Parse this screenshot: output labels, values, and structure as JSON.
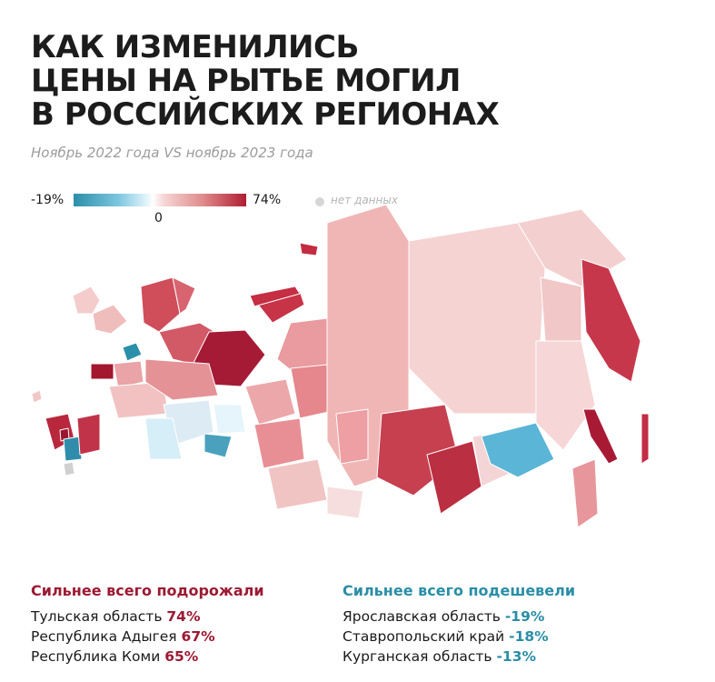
{
  "title_lines": [
    "КАК ИЗМЕНИЛИСЬ",
    "ЦЕНЫ НА РЫТЬЕ МОГИЛ",
    "В РОССИЙСКИХ РЕГИОНАХ"
  ],
  "subtitle": "Ноябрь 2022 года VS ноябрь 2023 года",
  "legend": {
    "min_label": "-19%",
    "zero_label": "0",
    "max_label": "74%",
    "nodata_label": "нет данных",
    "colors": {
      "negative": "#2b8fa9",
      "zero": "#ffffff",
      "positive": "#b01d34",
      "nodata": "#d6d6d6"
    }
  },
  "map": {
    "scale_min": -19,
    "scale_max": 74
  },
  "top_increase": {
    "heading": "Сильнее всего подорожали",
    "items": [
      {
        "region": "Тульская область",
        "value": "74%"
      },
      {
        "region": "Республика Адыгея",
        "value": "67%"
      },
      {
        "region": "Республика Коми",
        "value": "65%"
      }
    ]
  },
  "top_decrease": {
    "heading": "Сильнее всего подешевели",
    "items": [
      {
        "region": "Ярославская область",
        "value": "-19%"
      },
      {
        "region": "Ставропольский край",
        "value": "-18%"
      },
      {
        "region": "Курганская область",
        "value": "-13%"
      }
    ]
  }
}
